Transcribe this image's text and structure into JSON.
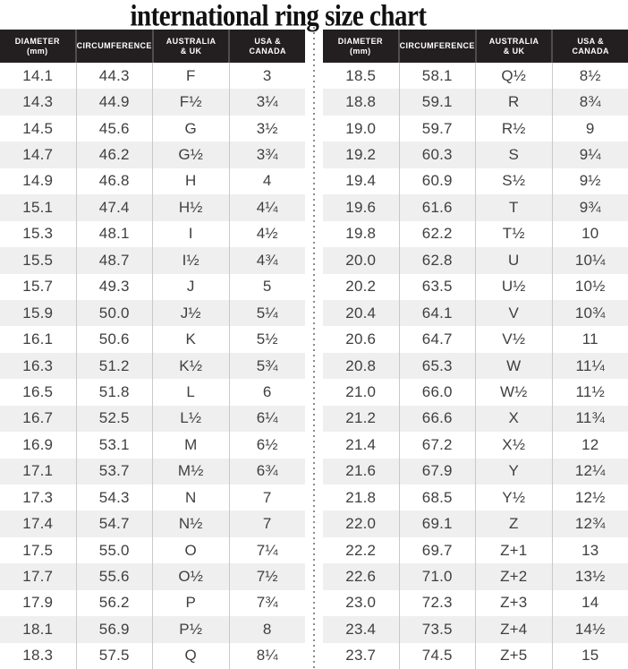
{
  "title": "international ring size chart",
  "header": {
    "columns": [
      {
        "line1": "DIAMETER",
        "line2": "(mm)"
      },
      {
        "line1": "CIRCUMFERENCE",
        "line2": ""
      },
      {
        "line1": "AUSTRALIA",
        "line2": "& UK"
      },
      {
        "line1": "USA &",
        "line2": "CANADA"
      }
    ]
  },
  "colors": {
    "header_bg": "#231f20",
    "header_text": "#ffffff",
    "row_bg": "#ffffff",
    "row_alt_bg": "#efeff0",
    "body_text": "#3f3f41",
    "grid_line": "#c9c9c9",
    "divider_dots": "#8c8c8c",
    "title_color": "#111111"
  },
  "chart_data": {
    "type": "table",
    "title": "international ring size chart",
    "columns": [
      "DIAMETER (mm)",
      "CIRCUMFERENCE",
      "AUSTRALIA & UK",
      "USA & CANADA"
    ],
    "layout": "two side-by-side tables separated by a vertical dotted line; alternating white/light-gray rows; black header band",
    "tables": [
      {
        "name": "left",
        "rows": [
          [
            "14.1",
            "44.3",
            "F",
            "3"
          ],
          [
            "14.3",
            "44.9",
            "F½",
            "3¼"
          ],
          [
            "14.5",
            "45.6",
            "G",
            "3½"
          ],
          [
            "14.7",
            "46.2",
            "G½",
            "3¾"
          ],
          [
            "14.9",
            "46.8",
            "H",
            "4"
          ],
          [
            "15.1",
            "47.4",
            "H½",
            "4¼"
          ],
          [
            "15.3",
            "48.1",
            "I",
            "4½"
          ],
          [
            "15.5",
            "48.7",
            "I½",
            "4¾"
          ],
          [
            "15.7",
            "49.3",
            "J",
            "5"
          ],
          [
            "15.9",
            "50.0",
            "J½",
            "5¼"
          ],
          [
            "16.1",
            "50.6",
            "K",
            "5½"
          ],
          [
            "16.3",
            "51.2",
            "K½",
            "5¾"
          ],
          [
            "16.5",
            "51.8",
            "L",
            "6"
          ],
          [
            "16.7",
            "52.5",
            "L½",
            "6¼"
          ],
          [
            "16.9",
            "53.1",
            "M",
            "6½"
          ],
          [
            "17.1",
            "53.7",
            "M½",
            "6¾"
          ],
          [
            "17.3",
            "54.3",
            "N",
            "7"
          ],
          [
            "17.4",
            "54.7",
            "N½",
            "7"
          ],
          [
            "17.5",
            "55.0",
            "O",
            "7¼"
          ],
          [
            "17.7",
            "55.6",
            "O½",
            "7½"
          ],
          [
            "17.9",
            "56.2",
            "P",
            "7¾"
          ],
          [
            "18.1",
            "56.9",
            "P½",
            "8"
          ],
          [
            "18.3",
            "57.5",
            "Q",
            "8¼"
          ]
        ]
      },
      {
        "name": "right",
        "rows": [
          [
            "18.5",
            "58.1",
            "Q½",
            "8½"
          ],
          [
            "18.8",
            "59.1",
            "R",
            "8¾"
          ],
          [
            "19.0",
            "59.7",
            "R½",
            "9"
          ],
          [
            "19.2",
            "60.3",
            "S",
            "9¼"
          ],
          [
            "19.4",
            "60.9",
            "S½",
            "9½"
          ],
          [
            "19.6",
            "61.6",
            "T",
            "9¾"
          ],
          [
            "19.8",
            "62.2",
            "T½",
            "10"
          ],
          [
            "20.0",
            "62.8",
            "U",
            "10¼"
          ],
          [
            "20.2",
            "63.5",
            "U½",
            "10½"
          ],
          [
            "20.4",
            "64.1",
            "V",
            "10¾"
          ],
          [
            "20.6",
            "64.7",
            "V½",
            "11"
          ],
          [
            "20.8",
            "65.3",
            "W",
            "11¼"
          ],
          [
            "21.0",
            "66.0",
            "W½",
            "11½"
          ],
          [
            "21.2",
            "66.6",
            "X",
            "11¾"
          ],
          [
            "21.4",
            "67.2",
            "X½",
            "12"
          ],
          [
            "21.6",
            "67.9",
            "Y",
            "12¼"
          ],
          [
            "21.8",
            "68.5",
            "Y½",
            "12½"
          ],
          [
            "22.0",
            "69.1",
            "Z",
            "12¾"
          ],
          [
            "22.2",
            "69.7",
            "Z+1",
            "13"
          ],
          [
            "22.6",
            "71.0",
            "Z+2",
            "13½"
          ],
          [
            "23.0",
            "72.3",
            "Z+3",
            "14"
          ],
          [
            "23.4",
            "73.5",
            "Z+4",
            "14½"
          ],
          [
            "23.7",
            "74.5",
            "Z+5",
            "15"
          ]
        ]
      }
    ]
  }
}
